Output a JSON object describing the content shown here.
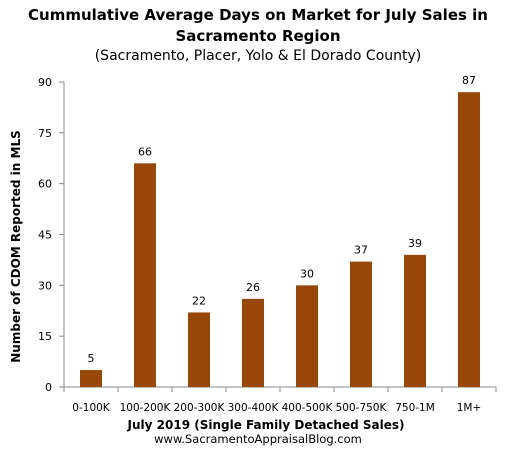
{
  "chart_data": {
    "type": "bar",
    "title_lines": [
      "Cummulative  Average Days on Market for July Sales in",
      "Sacramento Region"
    ],
    "subtitle": "(Sacramento, Placer,  Yolo & El Dorado County)",
    "xlabel": "July 2019  (Single Family Detached Sales)",
    "ylabel": "Number of CDOM Reported in MLS",
    "categories": [
      "0-100K",
      "100-200K",
      "200-300K",
      "300-400K",
      "400-500K",
      "500-750K",
      "750-1M",
      "1M+"
    ],
    "values": [
      5,
      66,
      22,
      26,
      30,
      37,
      39,
      87
    ],
    "data_labels": [
      "5",
      "66",
      "22",
      "26",
      "30",
      "37",
      "39",
      "87"
    ],
    "ylim": [
      0,
      90
    ],
    "yticks": [
      "0",
      "15",
      "30",
      "45",
      "60",
      "75",
      "90"
    ],
    "grid": false,
    "legend": "none",
    "bar_color": "#974706"
  },
  "footer": "www.SacramentoAppraisalBlog.com"
}
